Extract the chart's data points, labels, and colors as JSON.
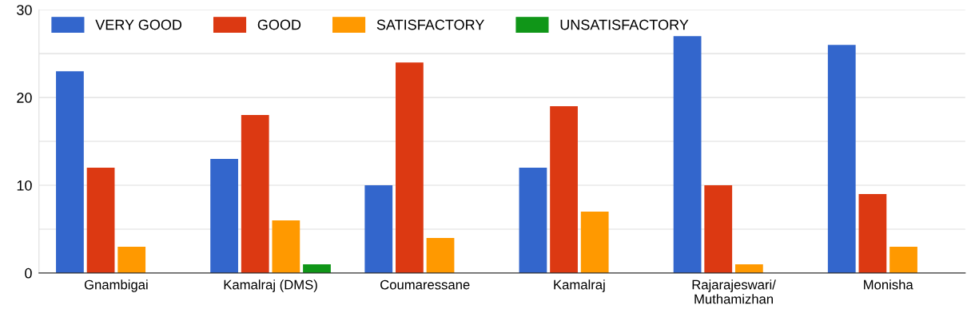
{
  "chart_data": {
    "type": "bar",
    "categories": [
      "Gnambigai",
      "Kamalraj (DMS)",
      "Coumaressane",
      "Kamalraj",
      "Rajarajeswari/\nMuthamizhan",
      "Monisha"
    ],
    "series": [
      {
        "name": "VERY GOOD",
        "color": "#3366cc",
        "values": [
          23,
          13,
          10,
          12,
          27,
          26
        ]
      },
      {
        "name": "GOOD",
        "color": "#dc3912",
        "values": [
          12,
          18,
          24,
          19,
          10,
          9
        ]
      },
      {
        "name": "SATISFACTORY",
        "color": "#ff9900",
        "values": [
          3,
          6,
          4,
          7,
          1,
          3
        ]
      },
      {
        "name": "UNSATISFACTORY",
        "color": "#109618",
        "values": [
          0,
          1,
          0,
          0,
          0,
          0
        ]
      }
    ],
    "ylim": [
      0,
      30
    ],
    "yticks": [
      0,
      {
        "value": 5,
        "label": null
      },
      10,
      {
        "value": 15,
        "label": null
      },
      20,
      {
        "value": 25,
        "label": null
      },
      30
    ],
    "grid": "y",
    "legend": "top left"
  }
}
